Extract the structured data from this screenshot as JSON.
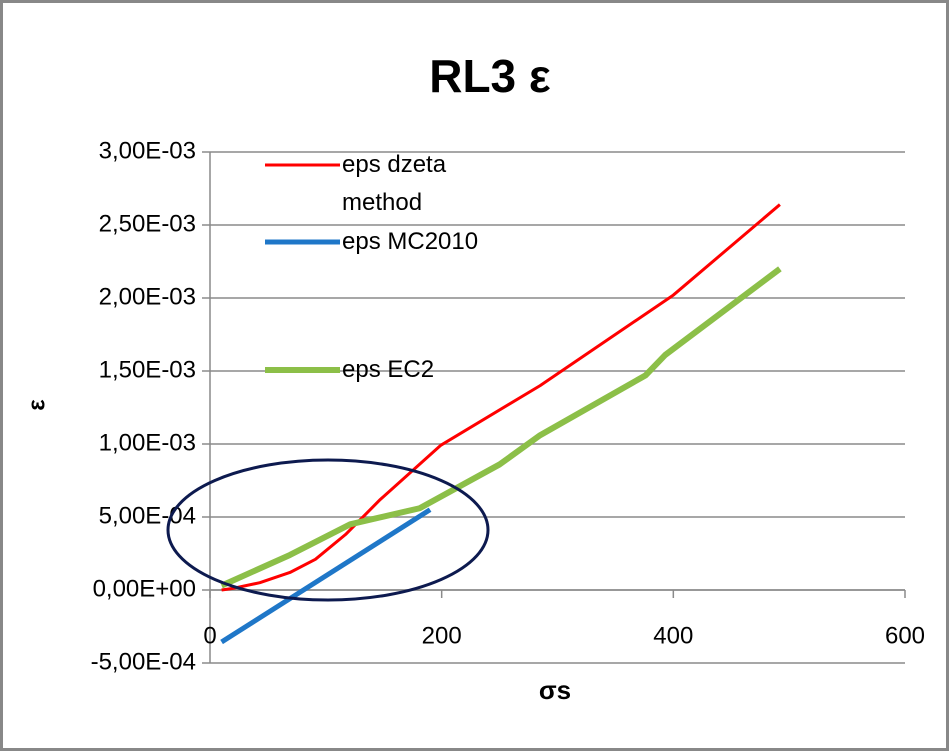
{
  "chart_data": {
    "type": "line",
    "title": "RL3 ε",
    "xlabel": "σs",
    "ylabel": "ε",
    "xlim": [
      0,
      600
    ],
    "xticks": [
      0,
      200,
      400,
      600
    ],
    "ylim": [
      -0.0005,
      0.003
    ],
    "yticks": [
      {
        "value": 0.003,
        "label": "3,00E-03"
      },
      {
        "value": 0.0025,
        "label": "2,50E-03"
      },
      {
        "value": 0.002,
        "label": "2,00E-03"
      },
      {
        "value": 0.0015,
        "label": "1,50E-03"
      },
      {
        "value": 0.001,
        "label": "1,00E-03"
      },
      {
        "value": 0.0005,
        "label": "5,00E-04"
      },
      {
        "value": 0,
        "label": "0,00E+00"
      },
      {
        "value": -0.0005,
        "label": "-5,00E-04"
      }
    ],
    "grid": true,
    "series": [
      {
        "name": "eps dzeta method",
        "color": "#ff0000",
        "x": [
          10,
          19,
          43,
          69,
          91,
          117,
          147,
          199,
          285,
          400,
          492
        ],
        "values": [
          0,
          1e-05,
          5e-05,
          0.00012,
          0.00021,
          0.00038,
          0.00062,
          0.00099,
          0.0014,
          0.00202,
          0.00264
        ]
      },
      {
        "name": "eps MC2010",
        "color": "#1f77c8",
        "x": [
          10,
          190
        ],
        "values": [
          -0.000356,
          0.00055
        ]
      },
      {
        "name": "eps EC2",
        "color": "#8cbf48",
        "x": [
          10,
          69,
          121,
          181,
          250,
          285,
          376,
          393,
          492
        ],
        "values": [
          3e-05,
          0.00024,
          0.00045,
          0.00056,
          0.00086,
          0.00106,
          0.00147,
          0.00161,
          0.0022
        ]
      }
    ]
  }
}
